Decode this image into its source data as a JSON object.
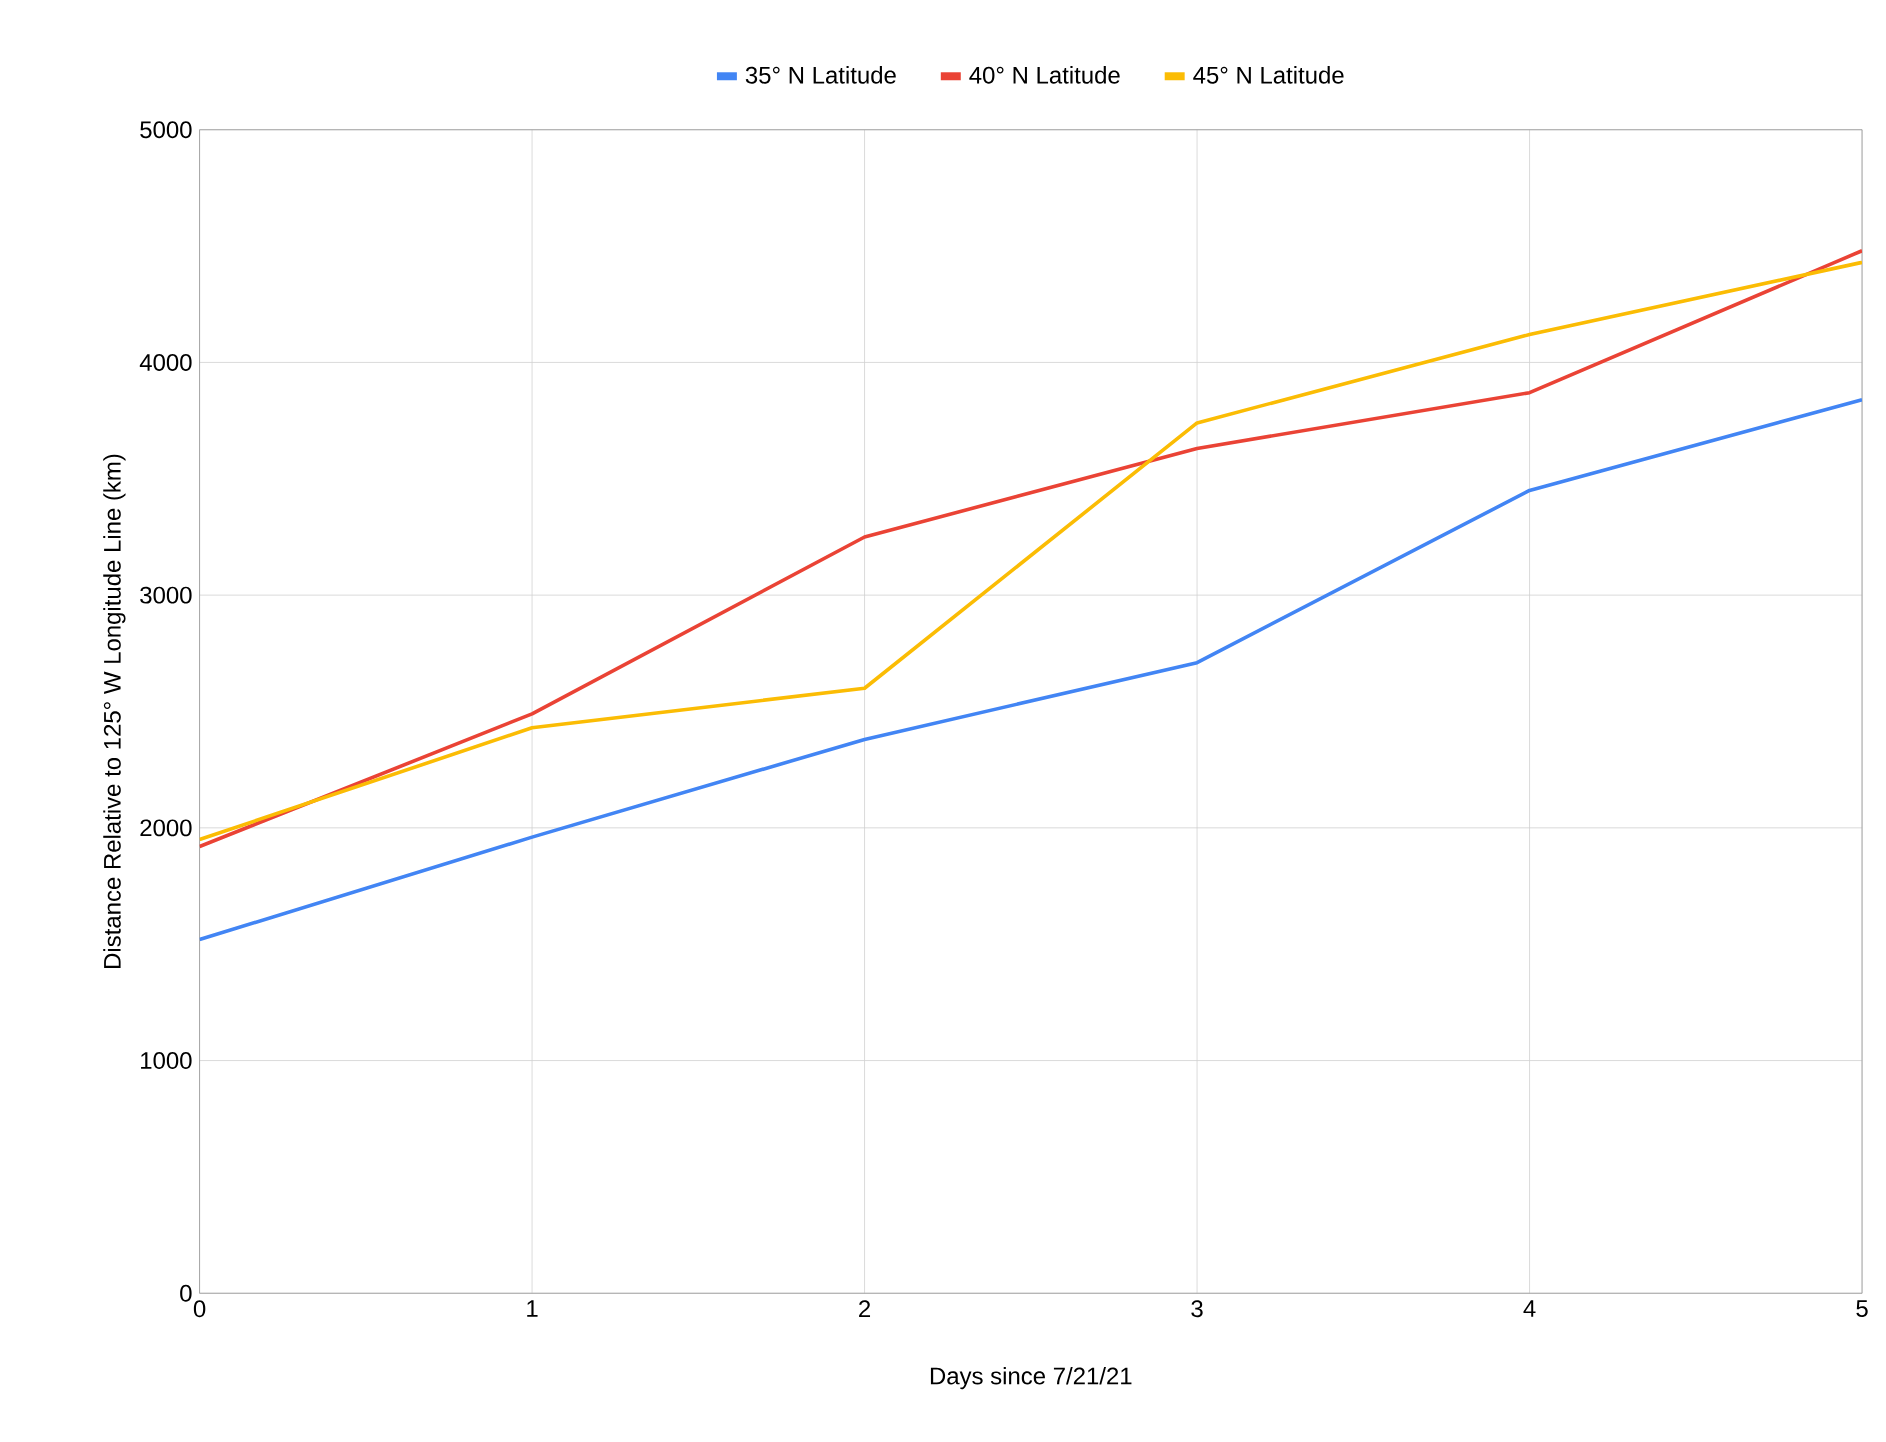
{
  "chart_data": {
    "type": "line",
    "xlabel": "Days since 7/21/21",
    "ylabel": "Distance Relative to 125° W Longitude Line (km)",
    "x": [
      0,
      1,
      2,
      3,
      4,
      5
    ],
    "series": [
      {
        "name": "35° N Latitude",
        "color": "#4285f4",
        "values": [
          1520,
          1960,
          2380,
          2710,
          3450,
          3840
        ]
      },
      {
        "name": "40° N Latitude",
        "color": "#ea4335",
        "values": [
          1920,
          2490,
          3250,
          3630,
          3870,
          4480
        ]
      },
      {
        "name": "45° N Latitude",
        "color": "#fbbc04",
        "values": [
          1950,
          2430,
          2600,
          3740,
          4120,
          4430
        ]
      }
    ],
    "xlim": [
      0,
      5
    ],
    "xticks": [
      0,
      1,
      2,
      3,
      4,
      5
    ],
    "ylim": [
      0,
      5000
    ],
    "yticks": [
      0,
      1000,
      2000,
      3000,
      4000,
      5000
    ],
    "grid": true,
    "legend": "top",
    "marker": "none",
    "line_style": "solid"
  }
}
